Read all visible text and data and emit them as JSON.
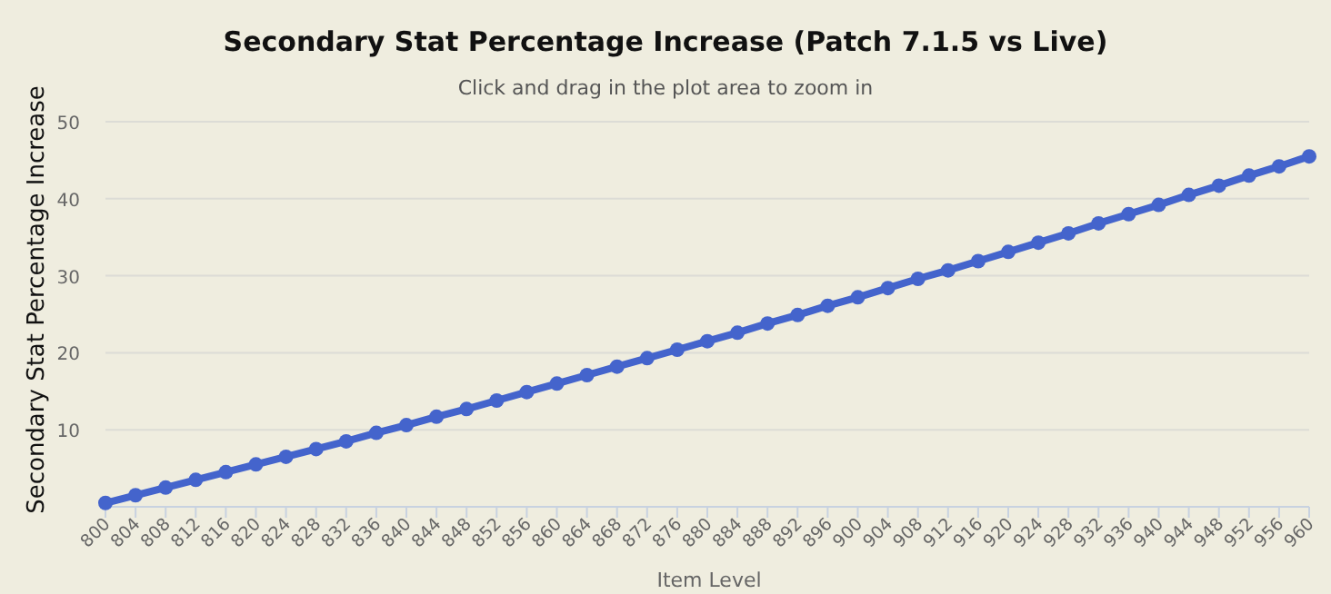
{
  "chart_data": {
    "type": "line",
    "title": "Secondary Stat Percentage Increase (Patch 7.1.5 vs Live)",
    "subtitle": "Click and drag in the plot area to zoom in",
    "xlabel": "Item Level",
    "ylabel": "Secondary Stat Percentage Increase",
    "x": [
      800,
      804,
      808,
      812,
      816,
      820,
      824,
      828,
      832,
      836,
      840,
      844,
      848,
      852,
      856,
      860,
      864,
      868,
      872,
      876,
      880,
      884,
      888,
      892,
      896,
      900,
      904,
      908,
      912,
      916,
      920,
      924,
      928,
      932,
      936,
      940,
      944,
      948,
      952,
      956,
      960
    ],
    "series": [
      {
        "color": "#4464cc",
        "values": [
          0.5,
          1.5,
          2.5,
          3.5,
          4.5,
          5.5,
          6.5,
          7.5,
          8.5,
          9.6,
          10.6,
          11.7,
          12.7,
          13.8,
          14.9,
          16.0,
          17.1,
          18.2,
          19.3,
          20.4,
          21.5,
          22.6,
          23.8,
          24.9,
          26.1,
          27.2,
          28.4,
          29.6,
          30.7,
          31.9,
          33.1,
          34.3,
          35.5,
          36.8,
          38.0,
          39.2,
          40.5,
          41.7,
          43.0,
          44.2,
          45.5
        ]
      }
    ],
    "xlim": [
      800,
      960
    ],
    "xticks": [
      800,
      804,
      808,
      812,
      816,
      820,
      824,
      828,
      832,
      836,
      840,
      844,
      848,
      852,
      856,
      860,
      864,
      868,
      872,
      876,
      880,
      884,
      888,
      892,
      896,
      900,
      904,
      908,
      912,
      916,
      920,
      924,
      928,
      932,
      936,
      940,
      944,
      948,
      952,
      956,
      960
    ],
    "ylim": [
      0,
      50
    ],
    "yticks": [
      {
        "value": 0,
        "label": null
      },
      10,
      20,
      30,
      40,
      50
    ],
    "grid": "y",
    "marker": "circle",
    "line_style": "solid"
  }
}
